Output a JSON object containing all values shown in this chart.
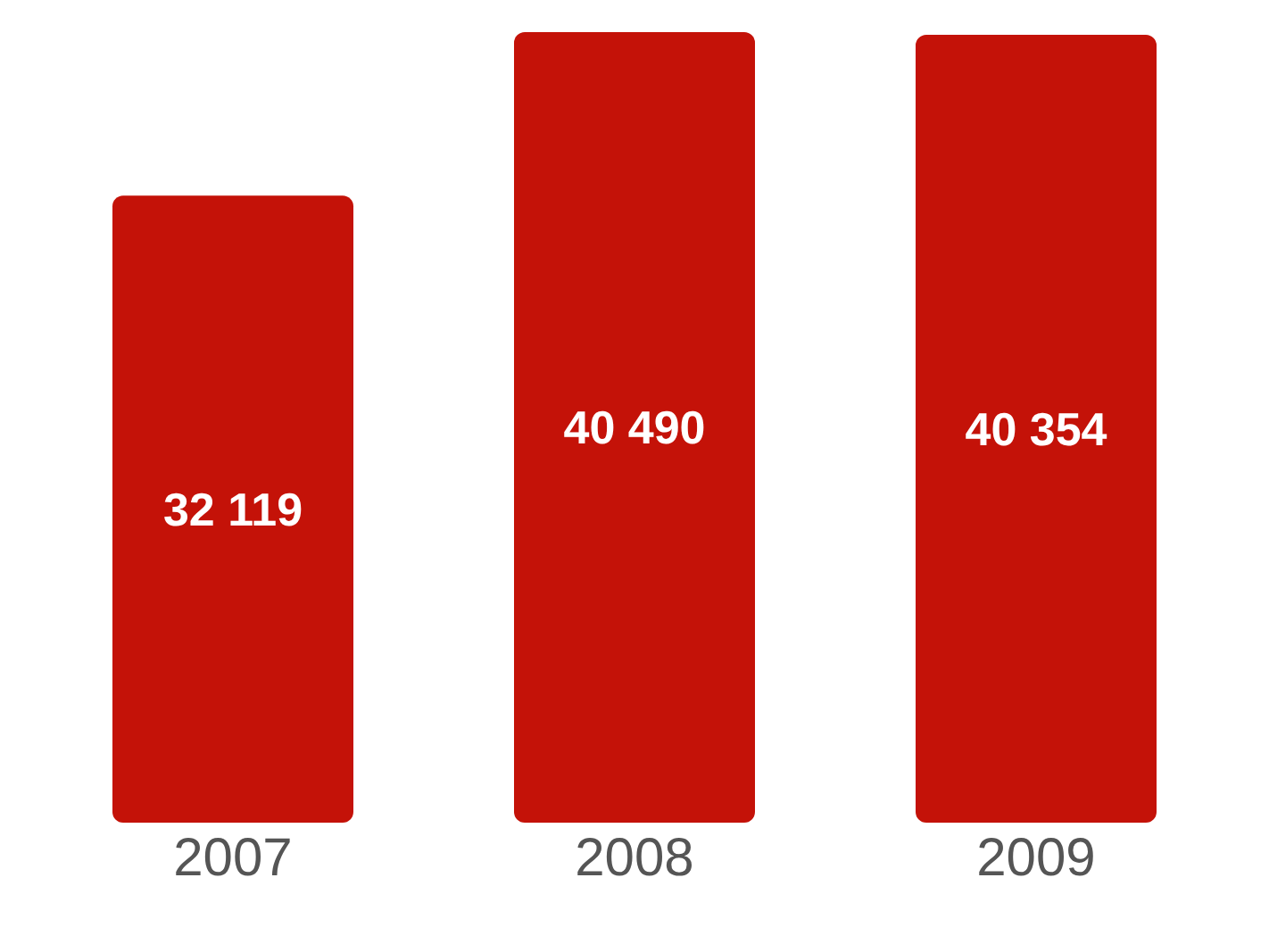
{
  "chart_data": {
    "type": "bar",
    "categories": [
      "2007",
      "2008",
      "2009"
    ],
    "values": [
      32119,
      40490,
      40354
    ],
    "value_labels": [
      "32 119",
      "40 490",
      "40 354"
    ],
    "color": "#c41208"
  }
}
